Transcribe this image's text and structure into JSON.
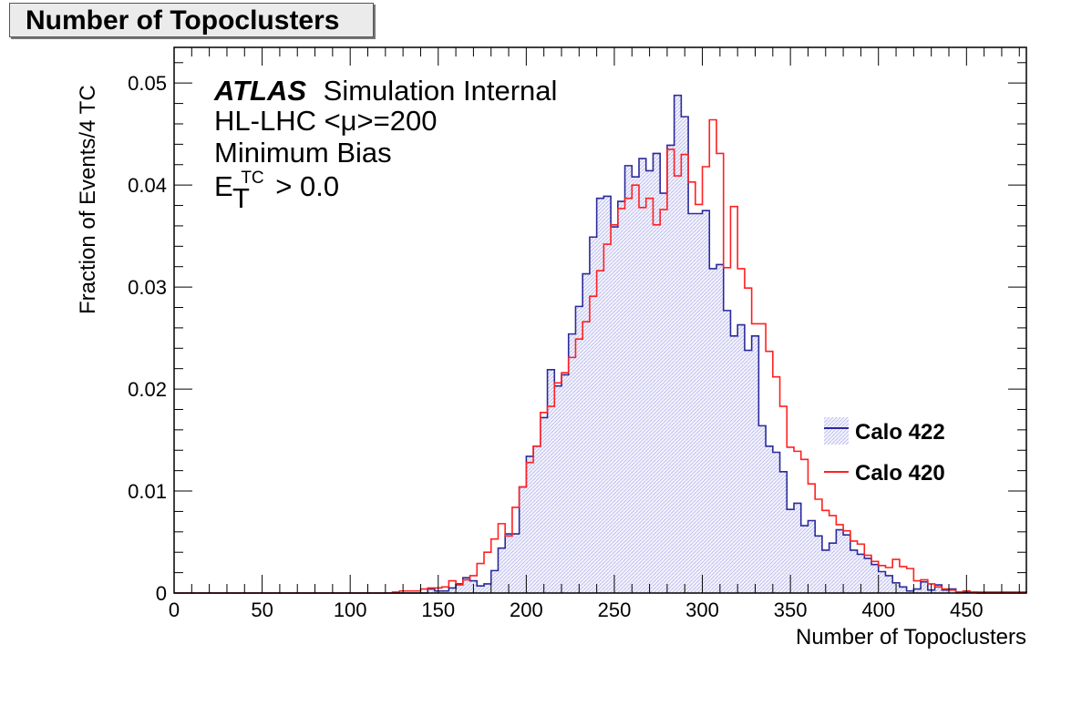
{
  "chart_data": {
    "type": "histogram",
    "title": "Number of Topoclusters",
    "xlabel": "Number of Topoclusters",
    "ylabel": "Fraction of Events/4 TC",
    "xlim": [
      0,
      484
    ],
    "ylim": [
      0,
      0.0535
    ],
    "bin_width": 4,
    "x_ticks": [
      0,
      50,
      100,
      150,
      200,
      250,
      300,
      350,
      400,
      450
    ],
    "y_ticks": [
      0,
      0.01,
      0.02,
      0.03,
      0.04,
      0.05
    ],
    "y_tick_labels": [
      "0",
      "0.01",
      "0.02",
      "0.03",
      "0.04",
      "0.05"
    ],
    "annotations": {
      "experiment": "ATLAS",
      "status": "Simulation Internal",
      "conditions": "HL-LHC <μ>=200",
      "sample": "Minimum Bias",
      "cut_symbol": "E",
      "cut_sub": "T",
      "cut_sup": "TC",
      "cut_value": "> 0.0"
    },
    "legend_position": "right",
    "series": [
      {
        "name": "Calo 422",
        "color": "#2a2a9a",
        "fill": "hatched-light-blue",
        "bin_start": 144,
        "values": [
          0.0004,
          0.0002,
          0.0002,
          0.0005,
          0.0009,
          0.0015,
          0.0012,
          0.0007,
          0.0009,
          0.0022,
          0.0044,
          0.0058,
          0.0058,
          0.0104,
          0.0134,
          0.0144,
          0.0172,
          0.0219,
          0.0203,
          0.0214,
          0.0254,
          0.0281,
          0.0313,
          0.0349,
          0.0387,
          0.0389,
          0.0359,
          0.0384,
          0.0419,
          0.0408,
          0.0426,
          0.0414,
          0.0431,
          0.0392,
          0.0439,
          0.0488,
          0.0467,
          0.0372,
          0.0372,
          0.0375,
          0.0318,
          0.0322,
          0.0277,
          0.0252,
          0.0263,
          0.0238,
          0.0252,
          0.0164,
          0.0144,
          0.0138,
          0.0119,
          0.0082,
          0.0088,
          0.0066,
          0.0071,
          0.0056,
          0.0042,
          0.0049,
          0.0062,
          0.0057,
          0.0042,
          0.0038,
          0.0034,
          0.0028,
          0.0021,
          0.0017,
          0.001,
          0.0006,
          0.0002,
          0.0004,
          0.0011,
          0.0003,
          0.0008,
          0.0003,
          0.0004,
          0.0001,
          0.0001,
          0.0001
        ]
      },
      {
        "name": "Calo 420",
        "color": "#ff2020",
        "fill": "none",
        "bin_start": 124,
        "values": [
          0.0001,
          0.0002,
          0.0002,
          0.0002,
          0.0004,
          0.0005,
          0.0005,
          0.0006,
          0.0012,
          0.0008,
          0.0013,
          0.0017,
          0.0029,
          0.004,
          0.0053,
          0.0068,
          0.0056,
          0.0084,
          0.0104,
          0.0128,
          0.0144,
          0.0177,
          0.0183,
          0.0206,
          0.0216,
          0.0231,
          0.0249,
          0.0266,
          0.0291,
          0.0316,
          0.0342,
          0.0361,
          0.0377,
          0.0387,
          0.04,
          0.0378,
          0.0387,
          0.0361,
          0.0376,
          0.0435,
          0.0409,
          0.043,
          0.0403,
          0.0381,
          0.0418,
          0.0464,
          0.0431,
          0.0319,
          0.0379,
          0.0318,
          0.0299,
          0.0264,
          0.0264,
          0.0237,
          0.0212,
          0.0183,
          0.0143,
          0.0139,
          0.0131,
          0.0107,
          0.0092,
          0.0081,
          0.0076,
          0.0067,
          0.0061,
          0.0051,
          0.0048,
          0.0037,
          0.0031,
          0.0027,
          0.0025,
          0.0033,
          0.0026,
          0.0024,
          0.0012,
          0.0013,
          0.0009,
          0.0006,
          0.0004,
          0.0003,
          0.0001,
          0.0002,
          0.0001,
          0.0001,
          0.0001,
          0.0001,
          0.0001,
          0.0001,
          0.0001,
          0.0001
        ]
      }
    ]
  }
}
